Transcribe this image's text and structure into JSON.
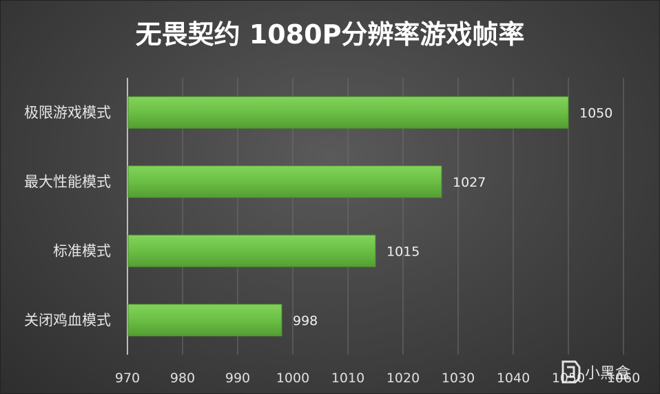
{
  "chart_data": {
    "type": "bar",
    "orientation": "horizontal",
    "title": "无畏契约 1080P分辨率游戏帧率",
    "categories": [
      "极限游戏模式",
      "最大性能模式",
      "标准模式",
      "关闭鸡血模式"
    ],
    "values": [
      1050,
      1027,
      1015,
      998
    ],
    "data_labels": [
      "1050",
      "1027",
      "1015",
      "998"
    ],
    "xlim": [
      970,
      1060
    ],
    "x_ticks": [
      "970",
      "980",
      "990",
      "1000",
      "1010",
      "1020",
      "1030",
      "1040",
      "1050",
      "1060"
    ],
    "tick_values": [
      970,
      980,
      990,
      1000,
      1010,
      1020,
      1030,
      1040,
      1050,
      1060
    ],
    "grid": true,
    "legend": "none",
    "bar_color": "#6bbf45",
    "background_color": "#474747"
  },
  "watermark": {
    "text": "小黑盒",
    "logo_icon": "xiaoheihe-logo-icon"
  }
}
